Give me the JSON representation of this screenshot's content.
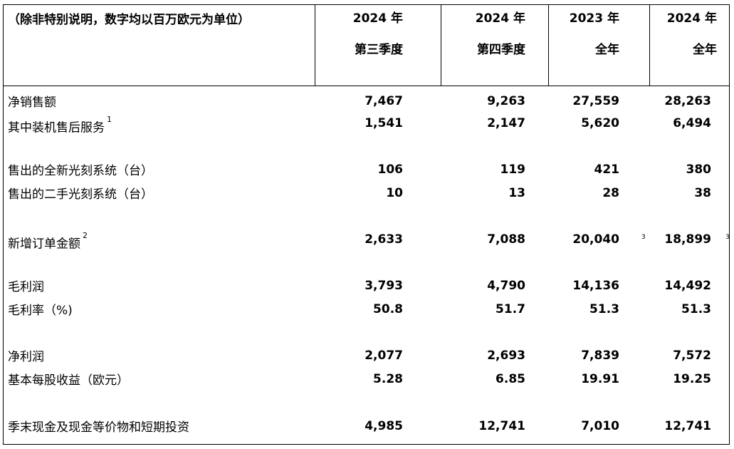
{
  "header": {
    "unit_note": "（除非特别说明，数字均以百万欧元为单位）",
    "columns": [
      {
        "year": "2024 年",
        "period": "第三季度"
      },
      {
        "year": "2024 年",
        "period": "第四季度"
      },
      {
        "year": "2023 年",
        "period": "全年"
      },
      {
        "year": "2024 年",
        "period": "全年"
      }
    ]
  },
  "rows": [
    {
      "label": "净销售额",
      "values": [
        "7,467",
        "9,263",
        "27,559",
        "28,263"
      ]
    },
    {
      "label": "其中装机售后服务",
      "note": "1",
      "values": [
        "1,541",
        "2,147",
        "5,620",
        "6,494"
      ]
    },
    {
      "label": "售出的全新光刻系统（台）",
      "values": [
        "106",
        "119",
        "421",
        "380"
      ]
    },
    {
      "label": "售出的二手光刻系统（台）",
      "values": [
        "10",
        "13",
        "28",
        "38"
      ]
    },
    {
      "label": "新增订单金额",
      "note": "2",
      "values": [
        "2,633",
        "7,088",
        "20,040",
        "18,899"
      ],
      "value_notes": [
        "",
        "",
        "3",
        "3"
      ]
    },
    {
      "label": "毛利润",
      "values": [
        "3,793",
        "4,790",
        "14,136",
        "14,492"
      ]
    },
    {
      "label": "毛利率（%)",
      "values": [
        "50.8",
        "51.7",
        "51.3",
        "51.3"
      ]
    },
    {
      "label": "净利润",
      "values": [
        "2,077",
        "2,693",
        "7,839",
        "7,572"
      ]
    },
    {
      "label": "基本每股收益（欧元）",
      "values": [
        "5.28",
        "6.85",
        "19.91",
        "19.25"
      ]
    },
    {
      "label": "季末现金及现金等价物和短期投资",
      "values": [
        "4,985",
        "12,741",
        "7,010",
        "12,741"
      ]
    }
  ]
}
